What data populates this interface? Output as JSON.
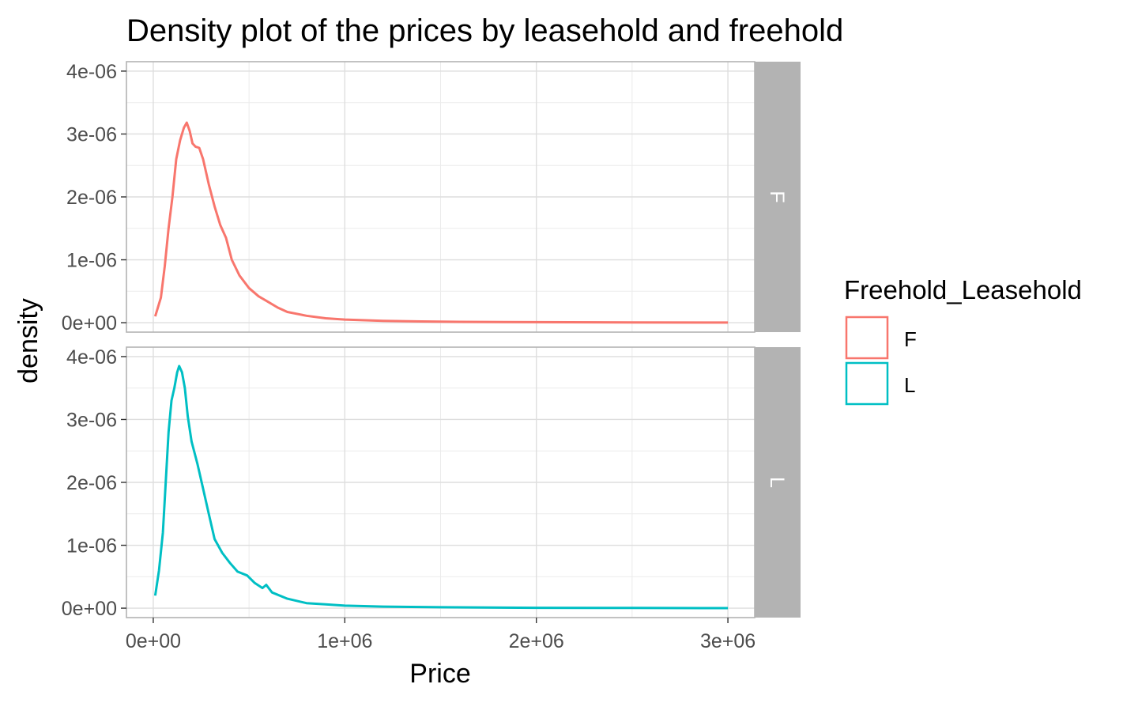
{
  "chart_data": {
    "type": "line",
    "title": "Density plot of the prices by leasehold and freehold",
    "xlabel": "Price",
    "ylabel": "density",
    "xlim": [
      -140000,
      3140000
    ],
    "ylim": [
      -150000000000,
      4150000000000
    ],
    "x_ticks": [
      {
        "value": 0,
        "label": "0e+00"
      },
      {
        "value": 1000000,
        "label": "1e+06"
      },
      {
        "value": 2000000,
        "label": "2e+06"
      },
      {
        "value": 3000000,
        "label": "3e+06"
      }
    ],
    "y_ticks": [
      {
        "value": 0,
        "label": "0e+00"
      },
      {
        "value": 1e-06,
        "label": "1e-06"
      },
      {
        "value": 2e-06,
        "label": "2e-06"
      },
      {
        "value": 3e-06,
        "label": "3e-06"
      },
      {
        "value": 4e-06,
        "label": "4e-06"
      }
    ],
    "grid": true,
    "legend": {
      "title": "Freehold_Leasehold",
      "position": "right",
      "entries": [
        {
          "label": "F",
          "color": "#F8766D"
        },
        {
          "label": "L",
          "color": "#00BFC4"
        }
      ]
    },
    "panels": [
      {
        "strip": "F",
        "color": "#F8766D",
        "points": [
          [
            10000,
            1e-07
          ],
          [
            40000,
            4e-07
          ],
          [
            60000,
            9e-07
          ],
          [
            80000,
            1.5e-06
          ],
          [
            100000,
            2e-06
          ],
          [
            120000,
            2.6e-06
          ],
          [
            140000,
            2.9e-06
          ],
          [
            160000,
            3.1e-06
          ],
          [
            175000,
            3.18e-06
          ],
          [
            190000,
            3.05e-06
          ],
          [
            205000,
            2.85e-06
          ],
          [
            220000,
            2.8e-06
          ],
          [
            240000,
            2.78e-06
          ],
          [
            260000,
            2.6e-06
          ],
          [
            290000,
            2.2e-06
          ],
          [
            320000,
            1.85e-06
          ],
          [
            350000,
            1.55e-06
          ],
          [
            380000,
            1.35e-06
          ],
          [
            410000,
            1e-06
          ],
          [
            450000,
            7.5e-07
          ],
          [
            500000,
            5.5e-07
          ],
          [
            550000,
            4.2e-07
          ],
          [
            600000,
            3.3e-07
          ],
          [
            650000,
            2.4e-07
          ],
          [
            700000,
            1.7e-07
          ],
          [
            800000,
            1.1e-07
          ],
          [
            900000,
            7e-08
          ],
          [
            1000000,
            5e-08
          ],
          [
            1200000,
            3e-08
          ],
          [
            1400000,
            2e-08
          ],
          [
            1600000,
            1.3e-08
          ],
          [
            2000000,
            8e-09
          ],
          [
            2500000,
            4e-09
          ],
          [
            3000000,
            2e-09
          ]
        ]
      },
      {
        "strip": "L",
        "color": "#00BFC4",
        "points": [
          [
            10000,
            2e-07
          ],
          [
            30000,
            6e-07
          ],
          [
            50000,
            1.2e-06
          ],
          [
            65000,
            2e-06
          ],
          [
            80000,
            2.8e-06
          ],
          [
            95000,
            3.3e-06
          ],
          [
            110000,
            3.5e-06
          ],
          [
            125000,
            3.75e-06
          ],
          [
            135000,
            3.85e-06
          ],
          [
            150000,
            3.75e-06
          ],
          [
            165000,
            3.5e-06
          ],
          [
            180000,
            3.05e-06
          ],
          [
            200000,
            2.65e-06
          ],
          [
            230000,
            2.3e-06
          ],
          [
            260000,
            1.9e-06
          ],
          [
            290000,
            1.5e-06
          ],
          [
            320000,
            1.1e-06
          ],
          [
            360000,
            8.8e-07
          ],
          [
            400000,
            7.2e-07
          ],
          [
            440000,
            5.8e-07
          ],
          [
            490000,
            5.2e-07
          ],
          [
            530000,
            4e-07
          ],
          [
            570000,
            3.2e-07
          ],
          [
            590000,
            3.7e-07
          ],
          [
            620000,
            2.5e-07
          ],
          [
            700000,
            1.5e-07
          ],
          [
            800000,
            8e-08
          ],
          [
            900000,
            6e-08
          ],
          [
            1000000,
            4e-08
          ],
          [
            1200000,
            2.5e-08
          ],
          [
            1500000,
            1.5e-08
          ],
          [
            2000000,
            6e-09
          ],
          [
            2500000,
            3e-09
          ],
          [
            3000000,
            1e-09
          ]
        ]
      }
    ]
  }
}
